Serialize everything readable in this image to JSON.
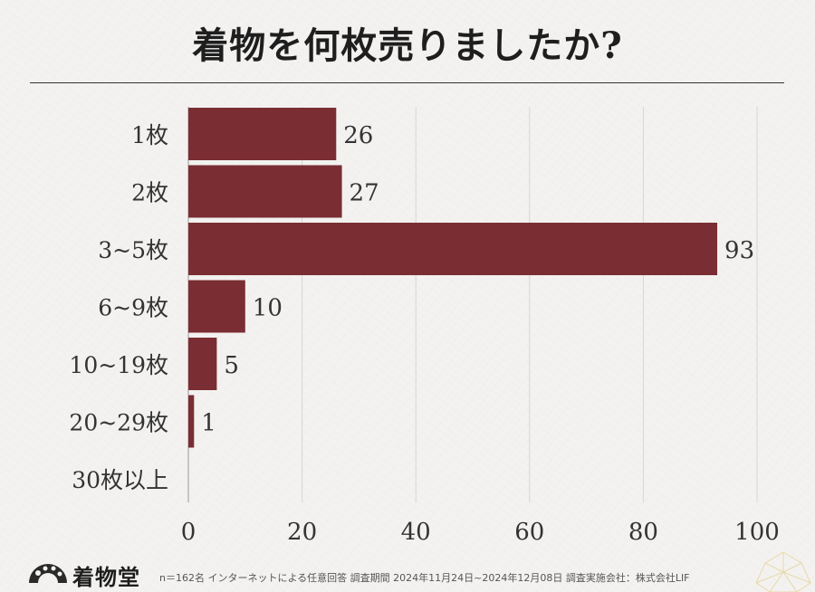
{
  "title": "着物を何枚売りましたか?",
  "brand": {
    "name": "着物堂",
    "accent_color": "#7a2e33",
    "logo_icon": "fan-logo-icon",
    "corner_icon": "asanoha-pattern-icon"
  },
  "footnote": "n＝162名 インターネットによる任意回答 調査期間 2024年11月24日~2024年12月08日 調査実施会社：株式会社LIF",
  "chart_data": {
    "type": "bar",
    "orientation": "horizontal",
    "categories": [
      "1枚",
      "2枚",
      "3~5枚",
      "6~9枚",
      "10~19枚",
      "20~29枚",
      "30枚以上"
    ],
    "values": [
      26,
      27,
      93,
      10,
      5,
      1,
      0
    ],
    "value_labels": [
      "26",
      "27",
      "93",
      "10",
      "5",
      "1",
      ""
    ],
    "xlim": [
      0,
      100
    ],
    "xticks": [
      0,
      20,
      40,
      60,
      80,
      100
    ],
    "grid": true,
    "bar_color": "#7a2e33",
    "title": "着物を何枚売りましたか?",
    "xlabel": "",
    "ylabel": ""
  }
}
